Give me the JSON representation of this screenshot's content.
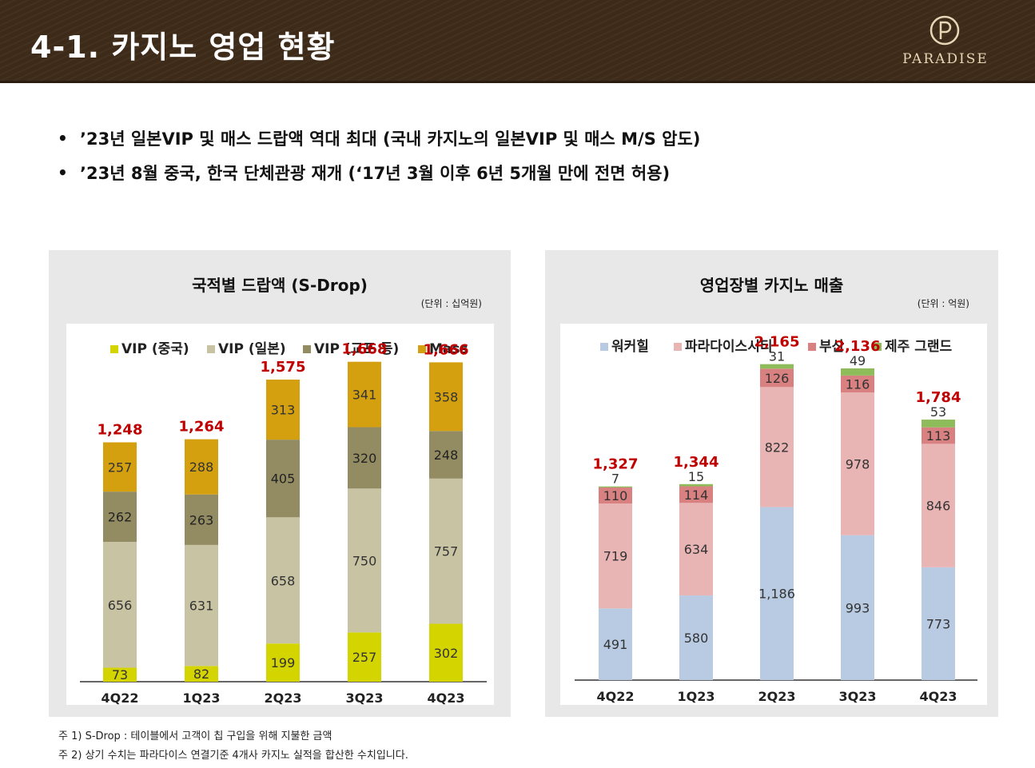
{
  "header": {
    "title": "4-1. 카지노 영업 현황",
    "logo_text": "PARADISE"
  },
  "bullets": [
    "’23년 일본VIP 및 매스 드랍액 역대 최대 (국내 카지노의 일본VIP 및 매스 M/S 압도)",
    "’23년 8월 중국, 한국 단체관광 재개 (‘17년 3월 이후 6년 5개월 만에 전면 허용)"
  ],
  "panels": {
    "left": {
      "title": "국적별 드랍액 (S-Drop)",
      "unit": "(단위 : 십억원)"
    },
    "right": {
      "title": "영업장별 카지노 매출",
      "unit": "(단위 : 억원)"
    }
  },
  "notes": [
    "주 1) S-Drop : 테이블에서 고객이 칩 구입을 위해 지불한 금액",
    "주 2) 상기 수치는 파라다이스 연결기준 4개사 카지노 실적을 합산한 수치입니다."
  ],
  "chart_data": [
    {
      "type": "bar",
      "stacked": true,
      "categories": [
        "4Q22",
        "1Q23",
        "2Q23",
        "3Q23",
        "4Q23"
      ],
      "series": [
        {
          "name": "VIP (중국)",
          "color": "#d4d400",
          "values": [
            73,
            82,
            199,
            257,
            302
          ]
        },
        {
          "name": "VIP (일본)",
          "color": "#c8c3a3",
          "values": [
            656,
            631,
            658,
            750,
            757
          ]
        },
        {
          "name": "VIP (교포 등)",
          "color": "#938c63",
          "values": [
            262,
            263,
            405,
            320,
            248
          ]
        },
        {
          "name": "Mass",
          "color": "#d4a00f",
          "values": [
            257,
            288,
            313,
            341,
            358
          ]
        }
      ],
      "totals": [
        "1,248",
        "1,264",
        "1,575",
        "1,668",
        "1,666"
      ],
      "total_color": "#c00000",
      "legend": "top",
      "grid": false,
      "ylim": [
        0,
        1750
      ]
    },
    {
      "type": "bar",
      "stacked": true,
      "categories": [
        "4Q22",
        "1Q23",
        "2Q23",
        "3Q23",
        "4Q23"
      ],
      "series": [
        {
          "name": "워커힐",
          "color": "#b8cbe3",
          "values": [
            491,
            580,
            1186,
            993,
            773
          ],
          "labels": [
            "491",
            "580",
            "1,186",
            "993",
            "773"
          ]
        },
        {
          "name": "파라다이스시티",
          "color": "#e8b4b4",
          "values": [
            719,
            634,
            822,
            978,
            846
          ],
          "labels": [
            "719",
            "634",
            "822",
            "978",
            "846"
          ]
        },
        {
          "name": "부산",
          "color": "#d98080",
          "values": [
            110,
            114,
            126,
            116,
            113
          ],
          "labels": [
            "110",
            "114",
            "126",
            "116",
            "113"
          ]
        },
        {
          "name": "제주 그랜드",
          "color": "#8fbc5a",
          "values": [
            7,
            15,
            31,
            49,
            53
          ],
          "labels": [
            "7",
            "15",
            "31",
            "49",
            "53"
          ]
        }
      ],
      "totals": [
        "1,327",
        "1,344",
        "2,165",
        "2,136",
        "1,784"
      ],
      "total_color": "#c00000",
      "legend": "top",
      "grid": false,
      "ylim": [
        0,
        2300
      ]
    }
  ]
}
